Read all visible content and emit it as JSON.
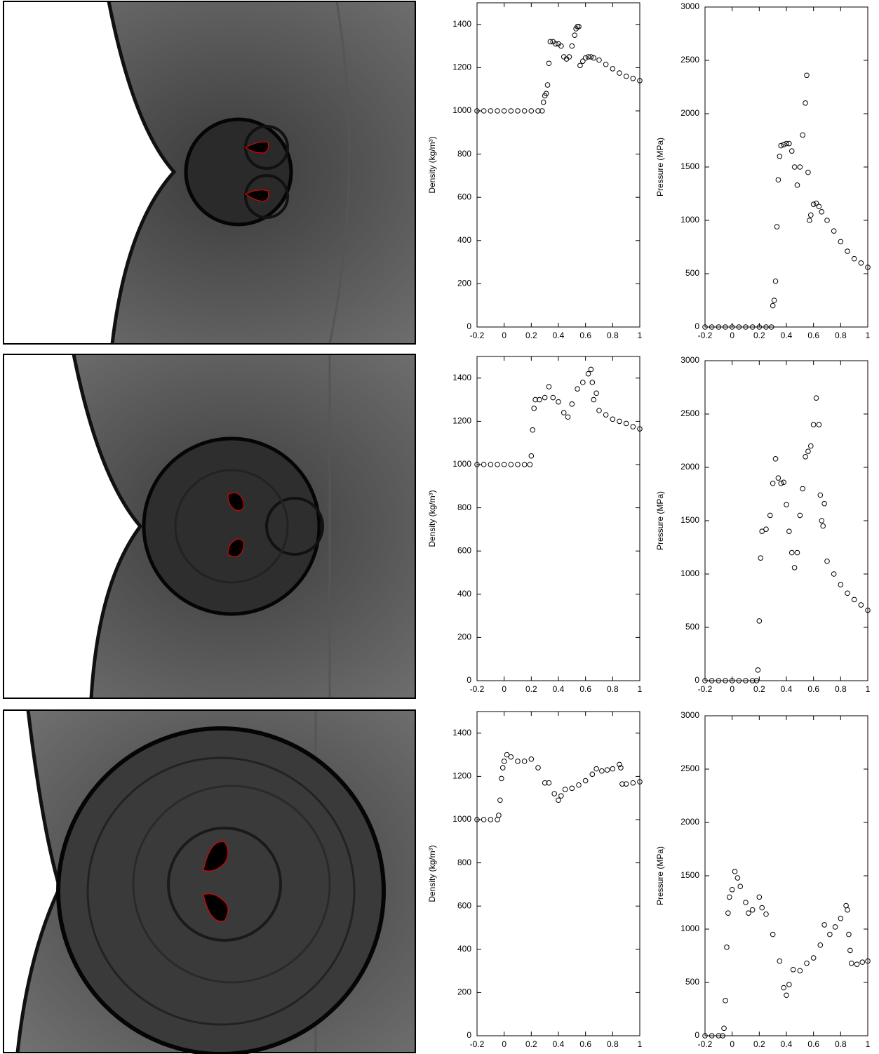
{
  "chart_data": [
    {
      "type": "scatter",
      "ylabel": "Density (kg/m³)",
      "color": "#000000",
      "xlim": [
        -0.2,
        1
      ],
      "xticks": [
        -0.2,
        0,
        0.2,
        0.4,
        0.6,
        0.8,
        1
      ],
      "ylim": [
        0,
        1500
      ],
      "yticks": [
        0,
        200,
        400,
        600,
        800,
        1000,
        1200,
        1400
      ],
      "x": [
        -0.2,
        -0.15,
        -0.1,
        -0.05,
        0,
        0.05,
        0.1,
        0.15,
        0.2,
        0.25,
        0.28,
        0.29,
        0.3,
        0.31,
        0.32,
        0.33,
        0.34,
        0.36,
        0.38,
        0.4,
        0.42,
        0.44,
        0.46,
        0.48,
        0.5,
        0.52,
        0.53,
        0.54,
        0.55,
        0.56,
        0.58,
        0.6,
        0.62,
        0.64,
        0.66,
        0.7,
        0.75,
        0.8,
        0.85,
        0.9,
        0.95,
        1
      ],
      "values": [
        1000,
        1000,
        1000,
        1000,
        1000,
        1000,
        1000,
        1000,
        1000,
        1000,
        1000,
        1040,
        1070,
        1080,
        1120,
        1220,
        1320,
        1320,
        1310,
        1310,
        1300,
        1250,
        1240,
        1250,
        1300,
        1350,
        1380,
        1390,
        1390,
        1210,
        1230,
        1245,
        1250,
        1250,
        1245,
        1235,
        1215,
        1195,
        1175,
        1160,
        1150,
        1140
      ]
    },
    {
      "type": "scatter",
      "ylabel": "Pressure (MPa)",
      "color": "#000000",
      "xlim": [
        -0.2,
        1
      ],
      "xticks": [
        -0.2,
        0,
        0.2,
        0.4,
        0.6,
        0.8,
        1
      ],
      "ylim": [
        0,
        3000
      ],
      "yticks": [
        0,
        500,
        1000,
        1500,
        2000,
        2500,
        3000
      ],
      "x": [
        -0.2,
        -0.15,
        -0.1,
        -0.05,
        0,
        0.05,
        0.1,
        0.15,
        0.2,
        0.25,
        0.29,
        0.3,
        0.31,
        0.32,
        0.33,
        0.34,
        0.35,
        0.36,
        0.38,
        0.4,
        0.42,
        0.44,
        0.46,
        0.48,
        0.5,
        0.52,
        0.54,
        0.55,
        0.56,
        0.57,
        0.58,
        0.6,
        0.62,
        0.64,
        0.66,
        0.7,
        0.75,
        0.8,
        0.85,
        0.9,
        0.95,
        1
      ],
      "values": [
        0,
        0,
        0,
        0,
        0,
        0,
        0,
        0,
        0,
        0,
        0,
        200,
        250,
        430,
        940,
        1380,
        1600,
        1700,
        1710,
        1720,
        1720,
        1650,
        1500,
        1330,
        1500,
        1800,
        2100,
        2360,
        1450,
        1000,
        1050,
        1150,
        1160,
        1130,
        1080,
        1000,
        900,
        800,
        710,
        640,
        600,
        560
      ]
    },
    {
      "type": "scatter",
      "ylabel": "Density (kg/m³)",
      "color": "#000000",
      "xlim": [
        -0.2,
        1
      ],
      "xticks": [
        -0.2,
        0,
        0.2,
        0.4,
        0.6,
        0.8,
        1
      ],
      "ylim": [
        0,
        1500
      ],
      "yticks": [
        0,
        200,
        400,
        600,
        800,
        1000,
        1200,
        1400
      ],
      "x": [
        -0.2,
        -0.15,
        -0.1,
        -0.05,
        0,
        0.05,
        0.1,
        0.15,
        0.19,
        0.2,
        0.21,
        0.22,
        0.23,
        0.26,
        0.3,
        0.33,
        0.36,
        0.4,
        0.44,
        0.47,
        0.5,
        0.54,
        0.58,
        0.62,
        0.64,
        0.65,
        0.66,
        0.68,
        0.7,
        0.75,
        0.8,
        0.85,
        0.9,
        0.95,
        1
      ],
      "values": [
        1000,
        1000,
        1000,
        1000,
        1000,
        1000,
        1000,
        1000,
        1000,
        1040,
        1160,
        1260,
        1300,
        1300,
        1310,
        1360,
        1310,
        1290,
        1240,
        1220,
        1280,
        1350,
        1380,
        1420,
        1440,
        1380,
        1300,
        1330,
        1250,
        1230,
        1210,
        1200,
        1190,
        1175,
        1165
      ]
    },
    {
      "type": "scatter",
      "ylabel": "Pressure (MPa)",
      "color": "#000000",
      "xlim": [
        -0.2,
        1
      ],
      "xticks": [
        -0.2,
        0,
        0.2,
        0.4,
        0.6,
        0.8,
        1
      ],
      "ylim": [
        0,
        3000
      ],
      "yticks": [
        0,
        500,
        1000,
        1500,
        2000,
        2500,
        3000
      ],
      "x": [
        -0.2,
        -0.15,
        -0.1,
        -0.05,
        0,
        0.05,
        0.1,
        0.15,
        0.18,
        0.19,
        0.2,
        0.21,
        0.22,
        0.25,
        0.28,
        0.3,
        0.32,
        0.34,
        0.36,
        0.38,
        0.4,
        0.42,
        0.44,
        0.46,
        0.48,
        0.5,
        0.52,
        0.54,
        0.56,
        0.58,
        0.6,
        0.62,
        0.64,
        0.65,
        0.66,
        0.67,
        0.68,
        0.7,
        0.75,
        0.8,
        0.85,
        0.9,
        0.95,
        1
      ],
      "values": [
        0,
        0,
        0,
        0,
        0,
        0,
        0,
        0,
        0,
        100,
        560,
        1150,
        1400,
        1420,
        1550,
        1850,
        2080,
        1900,
        1850,
        1860,
        1650,
        1400,
        1200,
        1060,
        1200,
        1550,
        1800,
        2100,
        2150,
        2200,
        2400,
        2650,
        2400,
        1740,
        1500,
        1450,
        1660,
        1120,
        1000,
        900,
        820,
        760,
        710,
        660
      ]
    },
    {
      "type": "scatter",
      "ylabel": "Density (kg/m³)",
      "color": "#000000",
      "xlim": [
        -0.2,
        1
      ],
      "xticks": [
        -0.2,
        0,
        0.2,
        0.4,
        0.6,
        0.8,
        1
      ],
      "ylim": [
        0,
        1500
      ],
      "yticks": [
        0,
        200,
        400,
        600,
        800,
        1000,
        1200,
        1400
      ],
      "x": [
        -0.2,
        -0.15,
        -0.1,
        -0.05,
        -0.04,
        -0.03,
        -0.02,
        -0.01,
        0,
        0.02,
        0.05,
        0.1,
        0.15,
        0.2,
        0.25,
        0.3,
        0.33,
        0.37,
        0.4,
        0.42,
        0.45,
        0.5,
        0.55,
        0.6,
        0.65,
        0.68,
        0.72,
        0.76,
        0.8,
        0.85,
        0.86,
        0.87,
        0.9,
        0.95,
        1
      ],
      "values": [
        1000,
        1000,
        1000,
        1000,
        1020,
        1090,
        1190,
        1240,
        1270,
        1300,
        1290,
        1270,
        1270,
        1280,
        1240,
        1170,
        1170,
        1120,
        1090,
        1110,
        1140,
        1145,
        1160,
        1180,
        1210,
        1235,
        1225,
        1230,
        1235,
        1255,
        1240,
        1165,
        1165,
        1170,
        1175
      ]
    },
    {
      "type": "scatter",
      "ylabel": "Pressure (MPa)",
      "color": "#000000",
      "xlim": [
        -0.2,
        1
      ],
      "xticks": [
        -0.2,
        0,
        0.2,
        0.4,
        0.6,
        0.8,
        1
      ],
      "ylim": [
        0,
        3000
      ],
      "yticks": [
        0,
        500,
        1000,
        1500,
        2000,
        2500,
        3000
      ],
      "x": [
        -0.2,
        -0.15,
        -0.1,
        -0.07,
        -0.06,
        -0.05,
        -0.04,
        -0.03,
        -0.02,
        0,
        0.02,
        0.04,
        0.06,
        0.1,
        0.12,
        0.15,
        0.2,
        0.22,
        0.25,
        0.3,
        0.35,
        0.38,
        0.4,
        0.42,
        0.45,
        0.5,
        0.55,
        0.6,
        0.65,
        0.68,
        0.72,
        0.76,
        0.8,
        0.84,
        0.85,
        0.86,
        0.87,
        0.88,
        0.92,
        0.96,
        1
      ],
      "values": [
        0,
        0,
        0,
        0,
        70,
        330,
        830,
        1150,
        1300,
        1370,
        1540,
        1480,
        1400,
        1250,
        1150,
        1180,
        1300,
        1200,
        1140,
        950,
        700,
        450,
        380,
        480,
        620,
        610,
        680,
        730,
        850,
        1040,
        950,
        1020,
        1100,
        1220,
        1180,
        950,
        800,
        680,
        670,
        690,
        700
      ]
    }
  ]
}
